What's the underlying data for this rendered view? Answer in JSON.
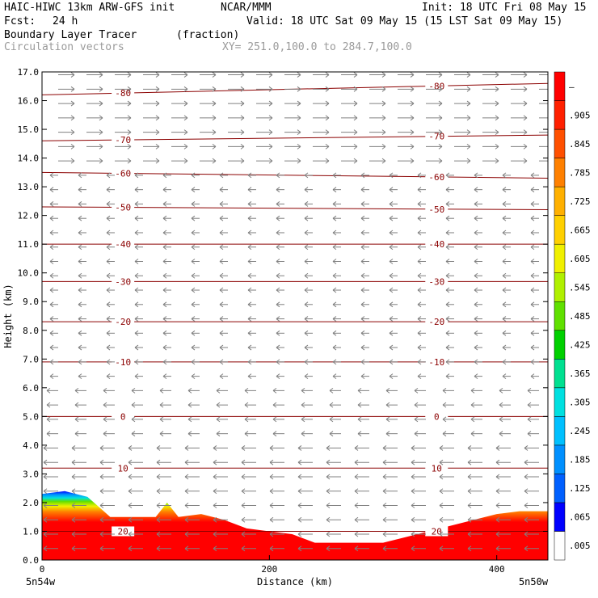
{
  "header": {
    "model": "HAIC-HIWC 13km ARW-GFS init",
    "org": "NCAR/MMM",
    "init": "Init: 18 UTC Fri 08 May 15",
    "fcst_label": "Fcst:",
    "fcst_value": "24 h",
    "valid": "Valid: 18 UTC Sat 09 May 15 (15 LST Sat 09 May 15)",
    "field": "Boundary Layer Tracer",
    "units": "(fraction)",
    "vectors": "Circulation vectors",
    "xy": "XY= 251.0,100.0 to 284.7,100.0"
  },
  "colors": {
    "contour": "#8b0000",
    "vector": "#808080",
    "frame": "#000000"
  },
  "chart_data": {
    "type": "heatmap",
    "title": "Boundary Layer Tracer",
    "units": "(fraction)",
    "xlabel": "Distance (km)",
    "ylabel": "Height (km)",
    "xlim": [
      0,
      445
    ],
    "ylim": [
      0,
      17
    ],
    "x_ticks": [
      "0",
      "200",
      "400"
    ],
    "x_end_labels": [
      "5n54w",
      "5n50w"
    ],
    "y_ticks": [
      "0.0",
      "1.0",
      "2.0",
      "3.0",
      "4.0",
      "5.0",
      "6.0",
      "7.0",
      "8.0",
      "9.0",
      "10.0",
      "11.0",
      "12.0",
      "13.0",
      "14.0",
      "15.0",
      "16.0",
      "17.0"
    ],
    "colorbar_labels": [
      ".005",
      ".065",
      ".125",
      ".185",
      ".245",
      ".305",
      ".365",
      ".425",
      ".485",
      ".545",
      ".605",
      ".665",
      ".725",
      ".785",
      ".845",
      ".905",
      "–"
    ],
    "colorbar_colors": [
      "#ffffff",
      "#0000ff",
      "#0060ff",
      "#0090ff",
      "#00c0ff",
      "#00e0e0",
      "#00e090",
      "#00d000",
      "#60e000",
      "#b0f000",
      "#f0f000",
      "#ffd000",
      "#ffb000",
      "#ff8000",
      "#ff5000",
      "#ff2000",
      "#ff0000"
    ],
    "tracer_top_profile": {
      "x": [
        0,
        20,
        40,
        60,
        80,
        100,
        110,
        120,
        140,
        160,
        180,
        200,
        220,
        240,
        260,
        280,
        300,
        320,
        340,
        360,
        380,
        400,
        420,
        445
      ],
      "top": [
        2.3,
        2.4,
        2.2,
        1.5,
        1.5,
        1.5,
        2.0,
        1.5,
        1.6,
        1.4,
        1.1,
        1.0,
        0.9,
        0.6,
        0.6,
        0.6,
        0.6,
        0.8,
        1.0,
        1.2,
        1.4,
        1.6,
        1.7,
        1.7
      ]
    },
    "temperature_contours": [
      {
        "label": "-80",
        "height_left": 16.2,
        "height_right": 16.6
      },
      {
        "label": "-70",
        "height_left": 14.6,
        "height_right": 14.8
      },
      {
        "label": "-60",
        "height_left": 13.5,
        "height_right": 13.3
      },
      {
        "label": "-50",
        "height_left": 12.3,
        "height_right": 12.2
      },
      {
        "label": "-40",
        "height_left": 11.0,
        "height_right": 11.0
      },
      {
        "label": "-30",
        "height_left": 9.7,
        "height_right": 9.7
      },
      {
        "label": "-20",
        "height_left": 8.3,
        "height_right": 8.3
      },
      {
        "label": "-10",
        "height_left": 6.9,
        "height_right": 6.9
      },
      {
        "label": "0",
        "height_left": 5.0,
        "height_right": 5.0
      },
      {
        "label": "10",
        "height_left": 3.2,
        "height_right": 3.2
      },
      {
        "label": "20",
        "height_left": 1.0,
        "height_right": 1.0
      }
    ]
  }
}
